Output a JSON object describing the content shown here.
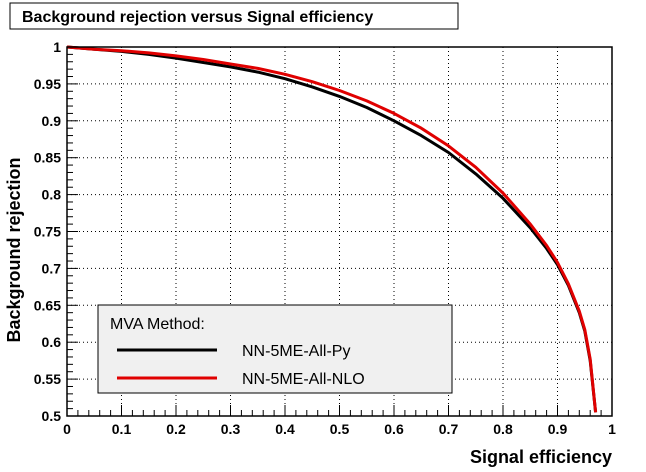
{
  "chart_data": {
    "type": "line",
    "title": "Background rejection versus Signal efficiency",
    "xlabel": "Signal efficiency",
    "ylabel": "Background rejection",
    "xlim": [
      0,
      1
    ],
    "ylim": [
      0.5,
      1
    ],
    "xticks": [
      "0",
      "0.1",
      "0.2",
      "0.3",
      "0.4",
      "0.5",
      "0.6",
      "0.7",
      "0.8",
      "0.9",
      "1"
    ],
    "yticks": [
      "0.5",
      "0.55",
      "0.6",
      "0.65",
      "0.7",
      "0.75",
      "0.8",
      "0.85",
      "0.9",
      "0.95",
      "1"
    ],
    "grid": true,
    "legend": {
      "title": "MVA Method:",
      "placement": "bottom-left"
    },
    "series": [
      {
        "name": "NN-5ME-All-Py",
        "color": "#000000",
        "x": [
          0,
          0.05,
          0.1,
          0.15,
          0.2,
          0.25,
          0.3,
          0.35,
          0.4,
          0.45,
          0.5,
          0.55,
          0.6,
          0.65,
          0.7,
          0.75,
          0.8,
          0.85,
          0.88,
          0.9,
          0.92,
          0.94,
          0.95,
          0.96,
          0.97
        ],
        "y": [
          1.0,
          0.997,
          0.994,
          0.99,
          0.985,
          0.979,
          0.973,
          0.966,
          0.957,
          0.946,
          0.933,
          0.918,
          0.9,
          0.88,
          0.857,
          0.828,
          0.795,
          0.755,
          0.727,
          0.705,
          0.677,
          0.64,
          0.615,
          0.575,
          0.505
        ]
      },
      {
        "name": "NN-5ME-All-NLO",
        "color": "#e00000",
        "x": [
          0,
          0.05,
          0.1,
          0.15,
          0.2,
          0.25,
          0.3,
          0.35,
          0.4,
          0.45,
          0.5,
          0.55,
          0.6,
          0.65,
          0.7,
          0.75,
          0.8,
          0.85,
          0.88,
          0.9,
          0.92,
          0.94,
          0.95,
          0.96,
          0.97
        ],
        "y": [
          1.0,
          0.997,
          0.995,
          0.992,
          0.988,
          0.983,
          0.977,
          0.971,
          0.963,
          0.953,
          0.941,
          0.927,
          0.91,
          0.89,
          0.866,
          0.837,
          0.802,
          0.76,
          0.731,
          0.708,
          0.679,
          0.642,
          0.617,
          0.577,
          0.505
        ]
      }
    ]
  }
}
